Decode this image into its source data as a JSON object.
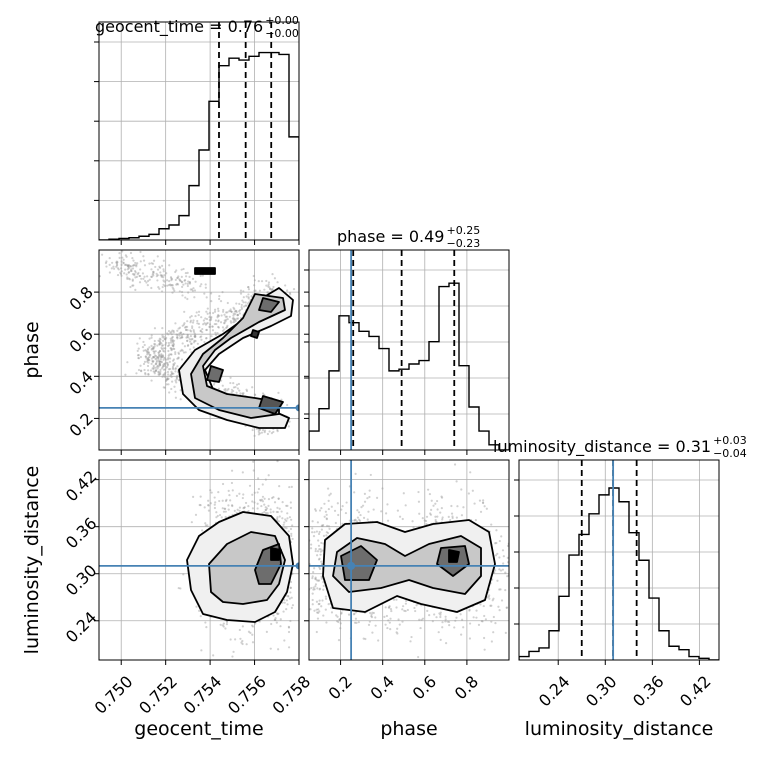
{
  "chart_data": {
    "type": "corner",
    "parameters": [
      "geocent_time",
      "phase",
      "luminosity_distance"
    ],
    "truths": {
      "phase": 0.25,
      "luminosity_distance": 0.31
    },
    "titles": [
      {
        "param": "geocent_time",
        "label": "geocent_time = 0.76",
        "plus": "+0.00",
        "minus": "−0.00"
      },
      {
        "param": "phase",
        "label": "phase = 0.49",
        "plus": "+0.25",
        "minus": "−0.23"
      },
      {
        "param": "luminosity_distance",
        "label": "luminosity_distance = 0.31",
        "plus": "+0.03",
        "minus": "−0.04"
      }
    ],
    "axes": {
      "geocent_time": {
        "range": [
          0.749,
          0.758
        ],
        "ticks": [
          0.75,
          0.752,
          0.754,
          0.756,
          0.758
        ],
        "tick_labels": [
          "0.750",
          "0.752",
          "0.754",
          "0.756",
          "0.758"
        ]
      },
      "phase": {
        "range": [
          0.05,
          1.0
        ],
        "ticks": [
          0.2,
          0.4,
          0.6,
          0.8
        ],
        "tick_labels": [
          "0.2",
          "0.4",
          "0.6",
          "0.8"
        ]
      },
      "luminosity_distance": {
        "range": [
          0.19,
          0.445
        ],
        "ticks": [
          0.24,
          0.3,
          0.36,
          0.42
        ],
        "tick_labels": [
          "0.24",
          "0.30",
          "0.36",
          "0.42"
        ]
      }
    },
    "quantiles": {
      "geocent_time": [
        0.7544,
        0.7556,
        0.75675
      ],
      "phase": [
        0.26,
        0.49,
        0.74
      ],
      "luminosity_distance": [
        0.27,
        0.31,
        0.34
      ]
    },
    "histograms": {
      "geocent_time": {
        "edges_start": 0.749,
        "bin_width": 0.00045,
        "counts": [
          0,
          0.004,
          0.008,
          0.012,
          0.02,
          0.03,
          0.06,
          0.08,
          0.13,
          0.29,
          0.48,
          0.74,
          0.93,
          0.97,
          0.96,
          0.98,
          1.0,
          1.0,
          0.99,
          0.55
        ]
      },
      "phase": {
        "edges_start": 0.05,
        "bin_width": 0.0475,
        "counts": [
          0.11,
          0.24,
          0.46,
          0.78,
          0.74,
          0.69,
          0.66,
          0.59,
          0.46,
          0.47,
          0.5,
          0.52,
          0.63,
          0.95,
          0.97,
          0.49,
          0.25,
          0.11,
          0.03,
          0.0
        ]
      },
      "luminosity_distance": {
        "edges_start": 0.19,
        "bin_width": 0.01275,
        "counts": [
          0.02,
          0.05,
          0.07,
          0.17,
          0.37,
          0.61,
          0.73,
          0.85,
          0.96,
          1.0,
          0.92,
          0.74,
          0.58,
          0.36,
          0.17,
          0.08,
          0.06,
          0.02,
          0.01,
          0.0
        ]
      }
    },
    "densities": [
      {
        "x": "geocent_time",
        "y": "phase",
        "shape": "c-curve",
        "peaks": [
          [
            0.7565,
            0.7
          ],
          [
            0.7545,
            0.38
          ],
          [
            0.7568,
            0.22
          ]
        ]
      },
      {
        "x": "geocent_time",
        "y": "luminosity_distance",
        "shape": "blob",
        "peaks": [
          [
            0.7568,
            0.33
          ],
          [
            0.7562,
            0.3
          ]
        ]
      },
      {
        "x": "phase",
        "y": "luminosity_distance",
        "shape": "bimodal",
        "peaks": [
          [
            0.27,
            0.31
          ],
          [
            0.73,
            0.33
          ]
        ]
      }
    ],
    "grid": true
  }
}
